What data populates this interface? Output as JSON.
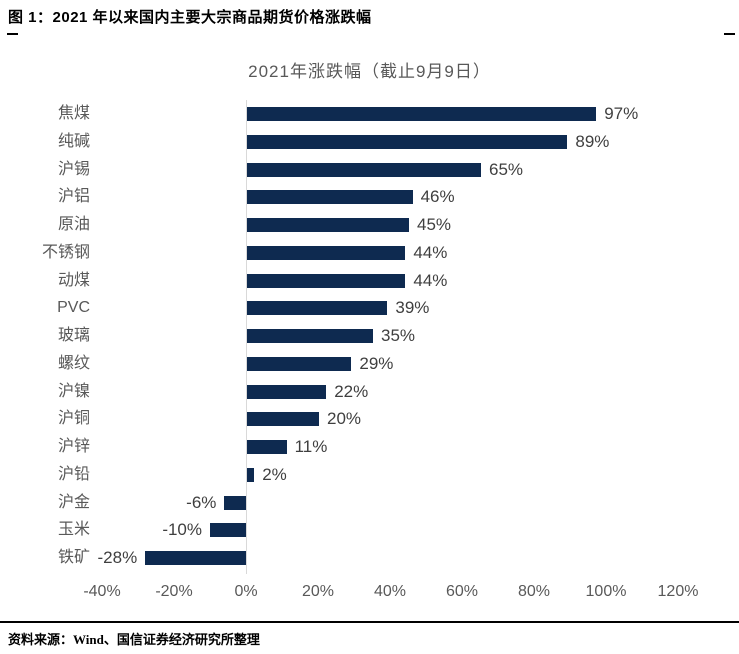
{
  "header": {
    "title": "图 1：2021 年以来国内主要大宗商品期货价格涨跌幅"
  },
  "chart_data": {
    "type": "bar",
    "orientation": "horizontal",
    "title": "2021年涨跌幅（截止9月9日）",
    "categories": [
      "焦煤",
      "纯碱",
      "沪锡",
      "沪铝",
      "原油",
      "不锈钢",
      "动煤",
      "PVC",
      "玻璃",
      "螺纹",
      "沪镍",
      "沪铜",
      "沪锌",
      "沪铅",
      "沪金",
      "玉米",
      "铁矿"
    ],
    "values": [
      97,
      89,
      65,
      46,
      45,
      44,
      44,
      39,
      35,
      29,
      22,
      20,
      11,
      2,
      -6,
      -10,
      -28
    ],
    "unit": "%",
    "x_ticks": [
      "-40%",
      "-20%",
      "0%",
      "20%",
      "40%",
      "60%",
      "80%",
      "100%",
      "120%"
    ],
    "xlim": [
      -40,
      120
    ],
    "grid": "off",
    "legend": "none",
    "bar_color": "#0e2a50",
    "category_label_color": "#595959",
    "value_label_color": "#3f3f3f",
    "axis_label_color": "#595959",
    "zero_line_color": "#d9d9d9"
  },
  "footer": {
    "source": "资料来源：Wind、国信证券经济研究所整理"
  }
}
